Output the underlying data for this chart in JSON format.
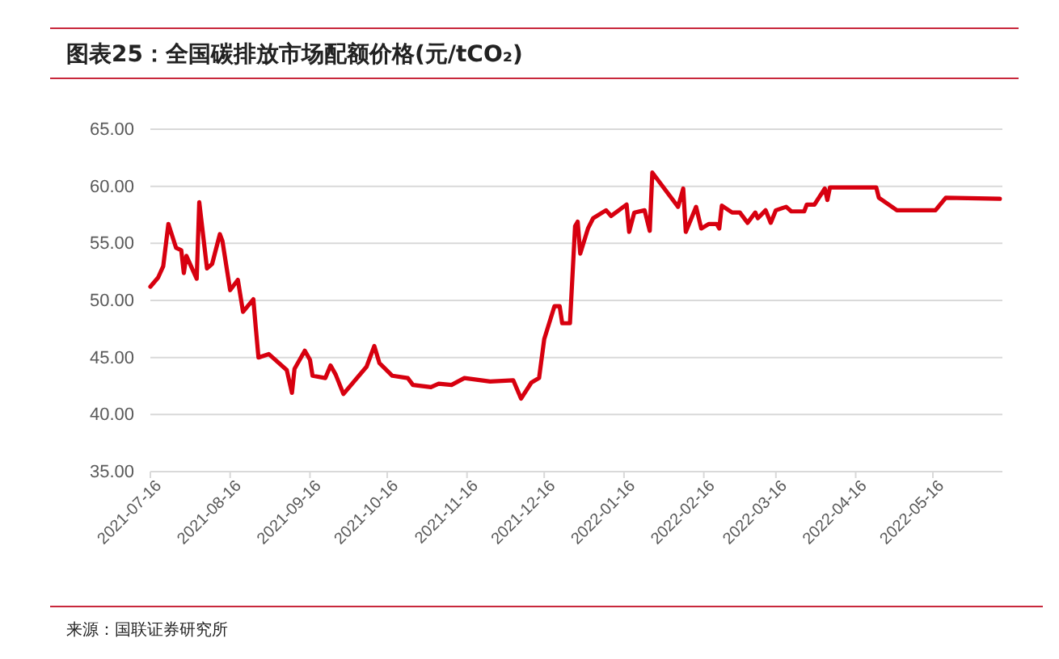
{
  "chart_data": {
    "type": "line",
    "title": "图表25：全国碳排放市场配额价格(元/tCO₂)",
    "annotations": [
      "来源：国联证券研究所"
    ],
    "x": [
      "2021-07-16",
      "2021-07-19",
      "2021-07-21",
      "2021-07-23",
      "2021-07-26",
      "2021-07-28",
      "2021-07-29",
      "2021-07-30",
      "2021-08-03",
      "2021-08-04",
      "2021-08-07",
      "2021-08-09",
      "2021-08-12",
      "2021-08-13",
      "2021-08-16",
      "2021-08-19",
      "2021-08-21",
      "2021-08-25",
      "2021-08-26",
      "2021-08-27",
      "2021-08-31",
      "2021-09-07",
      "2021-09-09",
      "2021-09-10",
      "2021-09-14",
      "2021-09-16",
      "2021-09-17",
      "2021-09-22",
      "2021-09-24",
      "2021-09-26",
      "2021-09-29",
      "2021-10-08",
      "2021-10-11",
      "2021-10-13",
      "2021-10-18",
      "2021-10-24",
      "2021-10-26",
      "2021-11-02",
      "2021-11-05",
      "2021-11-10",
      "2021-11-15",
      "2021-11-25",
      "2021-12-04",
      "2021-12-07",
      "2021-12-11",
      "2021-12-14",
      "2021-12-16",
      "2021-12-20",
      "2021-12-22",
      "2021-12-23",
      "2021-12-26",
      "2021-12-28",
      "2021-12-29",
      "2021-12-30",
      "2022-01-02",
      "2022-01-04",
      "2022-01-09",
      "2022-01-11",
      "2022-01-17",
      "2022-01-18",
      "2022-01-20",
      "2022-01-24",
      "2022-01-26",
      "2022-01-27",
      "2022-02-06",
      "2022-02-08",
      "2022-02-09",
      "2022-02-13",
      "2022-02-15",
      "2022-02-18",
      "2022-02-21",
      "2022-02-22",
      "2022-02-23",
      "2022-02-27",
      "2022-03-02",
      "2022-03-05",
      "2022-03-08",
      "2022-03-09",
      "2022-03-12",
      "2022-03-14",
      "2022-03-16",
      "2022-03-20",
      "2022-03-22",
      "2022-03-27",
      "2022-03-28",
      "2022-03-31",
      "2022-04-04",
      "2022-04-05",
      "2022-04-06",
      "2022-04-24",
      "2022-04-25",
      "2022-05-02",
      "2022-05-17",
      "2022-05-21",
      "2022-06-11"
    ],
    "series": [
      {
        "color": "#d7000f",
        "values": [
          51.2,
          52.0,
          53.0,
          56.7,
          54.6,
          54.4,
          52.4,
          53.9,
          51.9,
          58.6,
          52.8,
          53.2,
          55.8,
          55.2,
          50.9,
          51.8,
          49.0,
          50.1,
          47.5,
          45.0,
          45.3,
          43.9,
          41.9,
          44.0,
          45.6,
          44.8,
          43.4,
          43.2,
          44.3,
          43.5,
          41.8,
          44.2,
          46.0,
          44.5,
          43.4,
          43.2,
          42.6,
          42.4,
          42.7,
          42.6,
          43.2,
          42.9,
          43.0,
          41.4,
          42.8,
          43.2,
          46.6,
          49.5,
          49.5,
          48.0,
          48.0,
          56.5,
          56.9,
          54.1,
          56.3,
          57.2,
          57.9,
          57.4,
          58.4,
          56.0,
          57.7,
          57.9,
          56.1,
          61.2,
          58.2,
          59.8,
          56.0,
          58.2,
          56.3,
          56.7,
          56.7,
          56.3,
          58.3,
          57.7,
          57.7,
          56.8,
          57.7,
          57.2,
          57.9,
          56.8,
          57.9,
          58.2,
          57.8,
          57.8,
          58.4,
          58.4,
          59.8,
          58.8,
          59.9,
          59.9,
          59.0,
          57.9,
          57.9,
          59.0,
          58.9
        ]
      }
    ],
    "xlim": [
      "2021-07-16",
      "2022-06-12"
    ],
    "xticks": [
      {
        "value": "2021-07-16",
        "label": "2021-07-16"
      },
      {
        "value": "2021-08-16",
        "label": "2021-08-16"
      },
      {
        "value": "2021-09-16",
        "label": "2021-09-16"
      },
      {
        "value": "2021-10-16",
        "label": "2021-10-16"
      },
      {
        "value": "2021-11-16",
        "label": "2021-11-16"
      },
      {
        "value": "2021-12-16",
        "label": "2021-12-16"
      },
      {
        "value": "2022-01-16",
        "label": "2022-01-16"
      },
      {
        "value": "2022-02-16",
        "label": "2022-02-16"
      },
      {
        "value": "2022-03-16",
        "label": "2022-03-16"
      },
      {
        "value": "2022-04-16",
        "label": "2022-04-16"
      },
      {
        "value": "2022-05-16",
        "label": "2022-05-16"
      }
    ],
    "ylim": [
      35,
      65
    ],
    "yticks": [
      {
        "value": 35,
        "label": "35.00"
      },
      {
        "value": 40,
        "label": "40.00"
      },
      {
        "value": 45,
        "label": "45.00"
      },
      {
        "value": 50,
        "label": "50.00"
      },
      {
        "value": 55,
        "label": "55.00"
      },
      {
        "value": 60,
        "label": "60.00"
      },
      {
        "value": 65,
        "label": "65.00"
      }
    ],
    "grid": "y",
    "marker": "none",
    "line_style": "solid"
  }
}
